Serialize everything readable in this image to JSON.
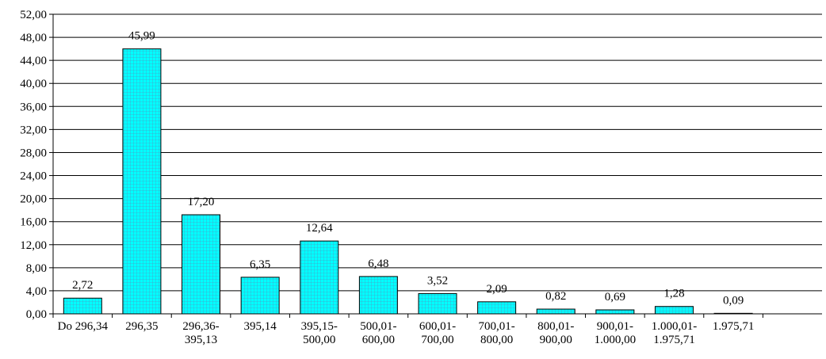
{
  "chart_data": {
    "type": "bar",
    "categories": [
      [
        "Do 296,34"
      ],
      [
        "296,35"
      ],
      [
        "296,36-",
        "395,13"
      ],
      [
        "395,14"
      ],
      [
        "395,15-",
        "500,00"
      ],
      [
        "500,01-",
        "600,00"
      ],
      [
        "600,01-",
        "700,00"
      ],
      [
        "700,01-",
        "800,00"
      ],
      [
        "800,01-",
        "900,00"
      ],
      [
        "900,01-",
        "1.000,00"
      ],
      [
        "1.000,01-",
        "1.975,71"
      ],
      [
        "1.975,71"
      ]
    ],
    "values": [
      2.72,
      45.99,
      17.2,
      6.35,
      12.64,
      6.48,
      3.52,
      2.09,
      0.82,
      0.69,
      1.28,
      0.09
    ],
    "value_labels": [
      "2,72",
      "45,99",
      "17,20",
      "6,35",
      "12,64",
      "6,48",
      "3,52",
      "2,09",
      "0,82",
      "0,69",
      "1,28",
      "0,09"
    ],
    "ylim": [
      0,
      52
    ],
    "yticks": [
      0,
      4,
      8,
      12,
      16,
      20,
      24,
      28,
      32,
      36,
      40,
      44,
      48,
      52
    ],
    "ytick_labels": [
      "0,00",
      "4,00",
      "8,00",
      "12,00",
      "16,00",
      "20,00",
      "24,00",
      "28,00",
      "32,00",
      "36,00",
      "40,00",
      "44,00",
      "48,00",
      "52,00"
    ],
    "grid": true,
    "bar_color": "#00ffff",
    "bar_pattern_color": "#4aa3c7",
    "title": "",
    "xlabel": "",
    "ylabel": ""
  }
}
